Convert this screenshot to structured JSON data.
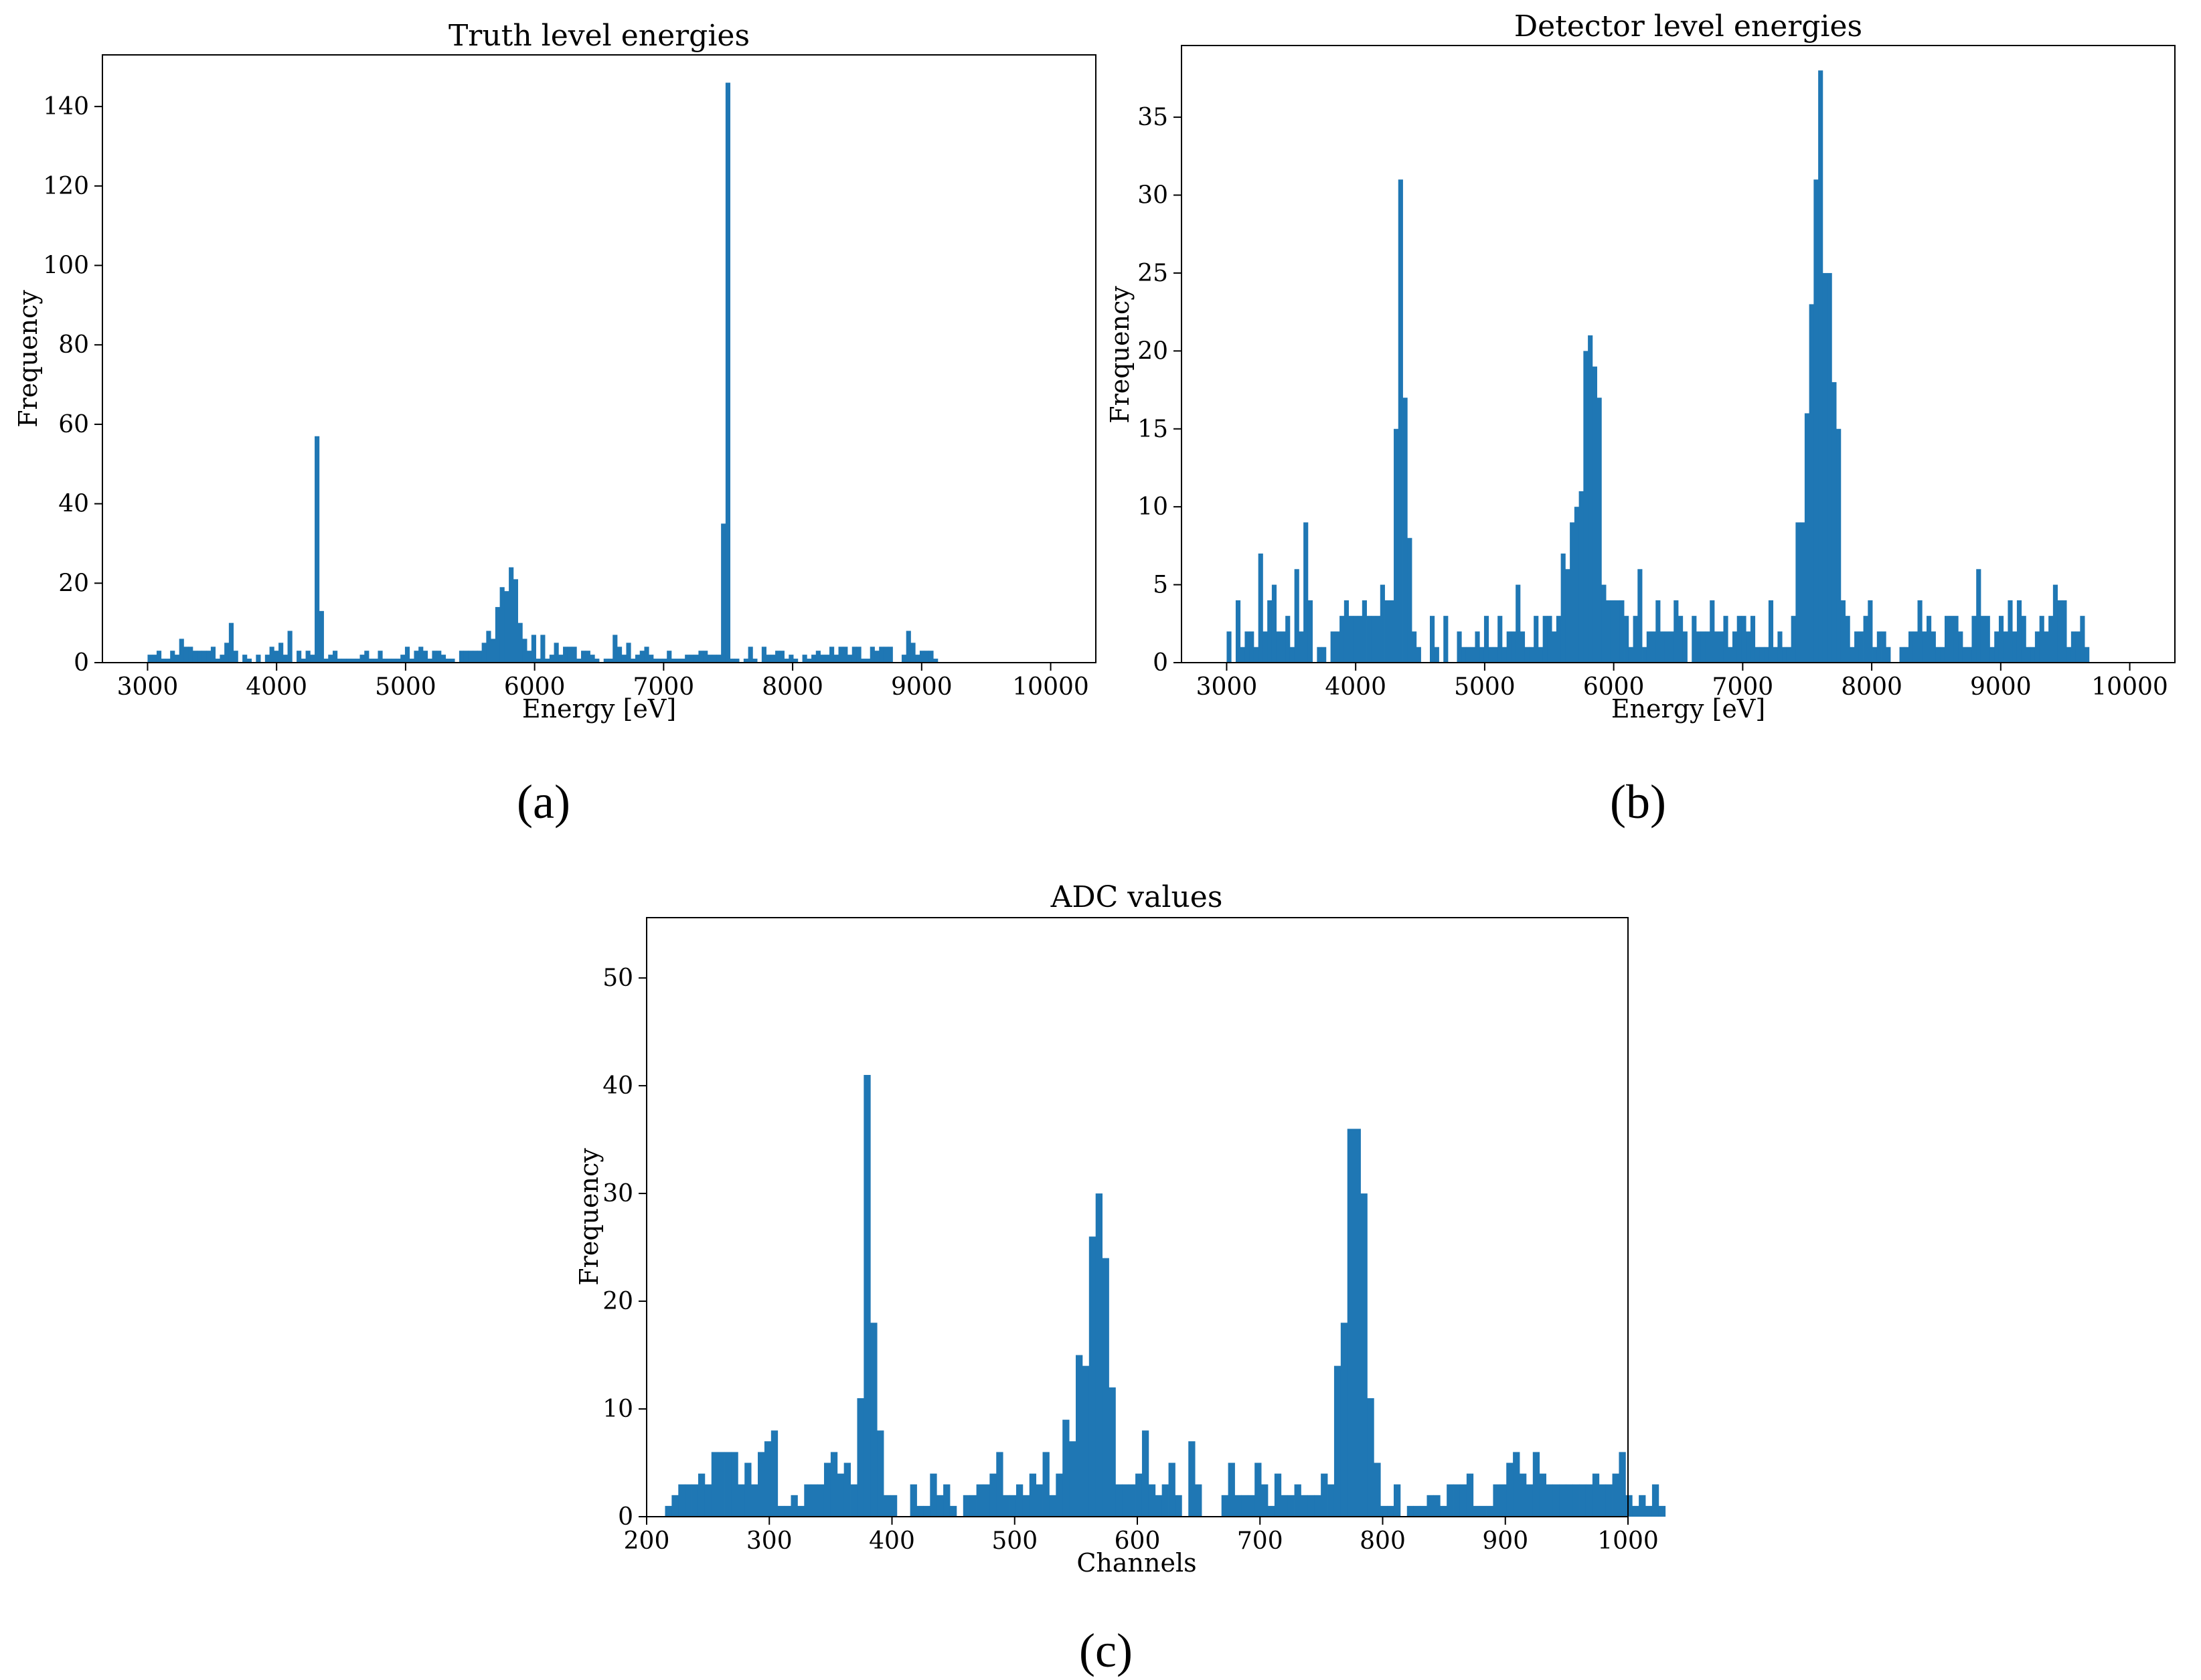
{
  "chart_data": [
    {
      "type": "bar",
      "panel_label": "(a)",
      "title": "Truth level energies",
      "xlabel": "Energy [eV]",
      "ylabel": "Frequency",
      "xlim": [
        2650,
        10350
      ],
      "ylim": [
        0,
        153
      ],
      "xticks": [
        3000,
        4000,
        5000,
        6000,
        7000,
        8000,
        9000,
        10000
      ],
      "yticks": [
        0,
        20,
        40,
        60,
        80,
        100,
        120,
        140
      ],
      "bin_start": 3000,
      "bin_width": 35,
      "values": [
        2,
        2,
        3,
        1,
        1,
        3,
        2,
        6,
        4,
        4,
        3,
        3,
        3,
        3,
        4,
        1,
        2,
        5,
        10,
        3,
        0,
        2,
        1,
        0,
        2,
        0,
        2,
        4,
        3,
        5,
        2,
        8,
        0,
        3,
        1,
        3,
        2,
        57,
        13,
        1,
        2,
        3,
        1,
        1,
        1,
        1,
        1,
        2,
        3,
        1,
        1,
        3,
        1,
        1,
        1,
        1,
        2,
        4,
        1,
        3,
        4,
        3,
        1,
        3,
        3,
        2,
        1,
        1,
        0,
        3,
        3,
        3,
        3,
        3,
        5,
        8,
        6,
        14,
        19,
        18,
        24,
        21,
        10,
        6,
        3,
        7,
        1,
        7,
        1,
        2,
        5,
        2,
        4,
        4,
        4,
        1,
        3,
        3,
        2,
        1,
        0,
        1,
        1,
        7,
        4,
        2,
        5,
        1,
        2,
        3,
        4,
        2,
        1,
        1,
        1,
        3,
        1,
        1,
        1,
        2,
        2,
        2,
        3,
        3,
        2,
        2,
        2,
        35,
        146,
        1,
        1,
        0,
        1,
        4,
        1,
        0,
        4,
        2,
        2,
        3,
        3,
        1,
        2,
        1,
        0,
        2,
        1,
        2,
        3,
        2,
        2,
        4,
        2,
        4,
        4,
        2,
        4,
        4,
        1,
        1,
        4,
        3,
        4,
        4,
        4,
        0,
        0,
        2,
        8,
        5,
        2,
        3,
        3,
        3,
        1,
        0,
        0
      ]
    },
    {
      "type": "bar",
      "panel_label": "(b)",
      "title": "Detector level energies",
      "xlabel": "Energy [eV]",
      "ylabel": "Frequency",
      "xlim": [
        2650,
        10350
      ],
      "ylim": [
        0,
        39.6
      ],
      "xticks": [
        3000,
        4000,
        5000,
        6000,
        7000,
        8000,
        9000,
        10000
      ],
      "yticks": [
        0,
        5,
        10,
        15,
        20,
        25,
        30,
        35
      ],
      "bin_start": 3000,
      "bin_width": 35,
      "values": [
        2,
        0,
        4,
        1,
        2,
        2,
        1,
        7,
        2,
        4,
        5,
        2,
        2,
        3,
        1,
        6,
        2,
        9,
        4,
        0,
        1,
        1,
        0,
        2,
        2,
        3,
        4,
        3,
        3,
        3,
        4,
        3,
        3,
        3,
        5,
        4,
        4,
        15,
        31,
        17,
        8,
        2,
        1,
        0,
        0,
        3,
        1,
        0,
        3,
        0,
        0,
        2,
        1,
        1,
        1,
        2,
        1,
        3,
        1,
        1,
        3,
        1,
        2,
        2,
        5,
        2,
        1,
        1,
        3,
        1,
        3,
        3,
        2,
        3,
        7,
        6,
        9,
        10,
        11,
        20,
        21,
        19,
        17,
        5,
        4,
        4,
        4,
        4,
        3,
        1,
        3,
        6,
        1,
        2,
        2,
        4,
        2,
        2,
        2,
        4,
        3,
        2,
        0,
        3,
        2,
        2,
        2,
        4,
        2,
        2,
        3,
        1,
        2,
        3,
        3,
        2,
        3,
        1,
        1,
        1,
        4,
        1,
        2,
        1,
        1,
        3,
        9,
        9,
        16,
        23,
        31,
        38,
        25,
        25,
        18,
        15,
        4,
        3,
        1,
        2,
        2,
        3,
        4,
        1,
        2,
        2,
        1,
        0,
        0,
        1,
        1,
        2,
        2,
        4,
        2,
        3,
        2,
        1,
        1,
        3,
        3,
        3,
        2,
        1,
        1,
        3,
        6,
        3,
        3,
        1,
        2,
        3,
        2,
        4,
        2,
        4,
        3,
        1,
        1,
        2,
        3,
        2,
        3,
        5,
        4,
        4,
        1,
        2,
        2,
        3,
        1,
        0,
        0,
        0
      ]
    },
    {
      "type": "bar",
      "panel_label": "(c)",
      "title": "ADC values",
      "xlabel": "Channels",
      "ylabel": "Frequency",
      "xlim": [
        200,
        1000
      ],
      "ylim": [
        0,
        55.6
      ],
      "xticks": [
        200,
        300,
        400,
        500,
        600,
        700,
        800,
        900,
        1000
      ],
      "yticks": [
        0,
        10,
        20,
        30,
        40,
        50
      ],
      "bin_start": 215,
      "bin_width": 5.4,
      "values": [
        1,
        2,
        3,
        3,
        3,
        4,
        3,
        6,
        6,
        6,
        6,
        3,
        5,
        3,
        6,
        7,
        8,
        1,
        1,
        2,
        1,
        3,
        3,
        3,
        5,
        6,
        4,
        5,
        3,
        11,
        41,
        18,
        8,
        2,
        2,
        0,
        0,
        3,
        1,
        1,
        4,
        2,
        3,
        1,
        0,
        2,
        2,
        3,
        3,
        4,
        6,
        2,
        2,
        3,
        2,
        4,
        3,
        6,
        2,
        4,
        9,
        7,
        15,
        14,
        26,
        30,
        24,
        12,
        3,
        3,
        3,
        4,
        8,
        3,
        2,
        3,
        5,
        2,
        0,
        7,
        3,
        0,
        0,
        0,
        2,
        5,
        2,
        2,
        2,
        5,
        3,
        1,
        4,
        2,
        2,
        3,
        2,
        2,
        2,
        4,
        3,
        14,
        18,
        36,
        36,
        30,
        11,
        5,
        1,
        1,
        3,
        0,
        1,
        1,
        1,
        2,
        2,
        1,
        3,
        3,
        3,
        4,
        1,
        1,
        1,
        3,
        3,
        5,
        6,
        4,
        3,
        6,
        4,
        3,
        3,
        3,
        3,
        3,
        3,
        3,
        4,
        3,
        3,
        4,
        6,
        2,
        1,
        2,
        1,
        3,
        1
      ]
    }
  ]
}
